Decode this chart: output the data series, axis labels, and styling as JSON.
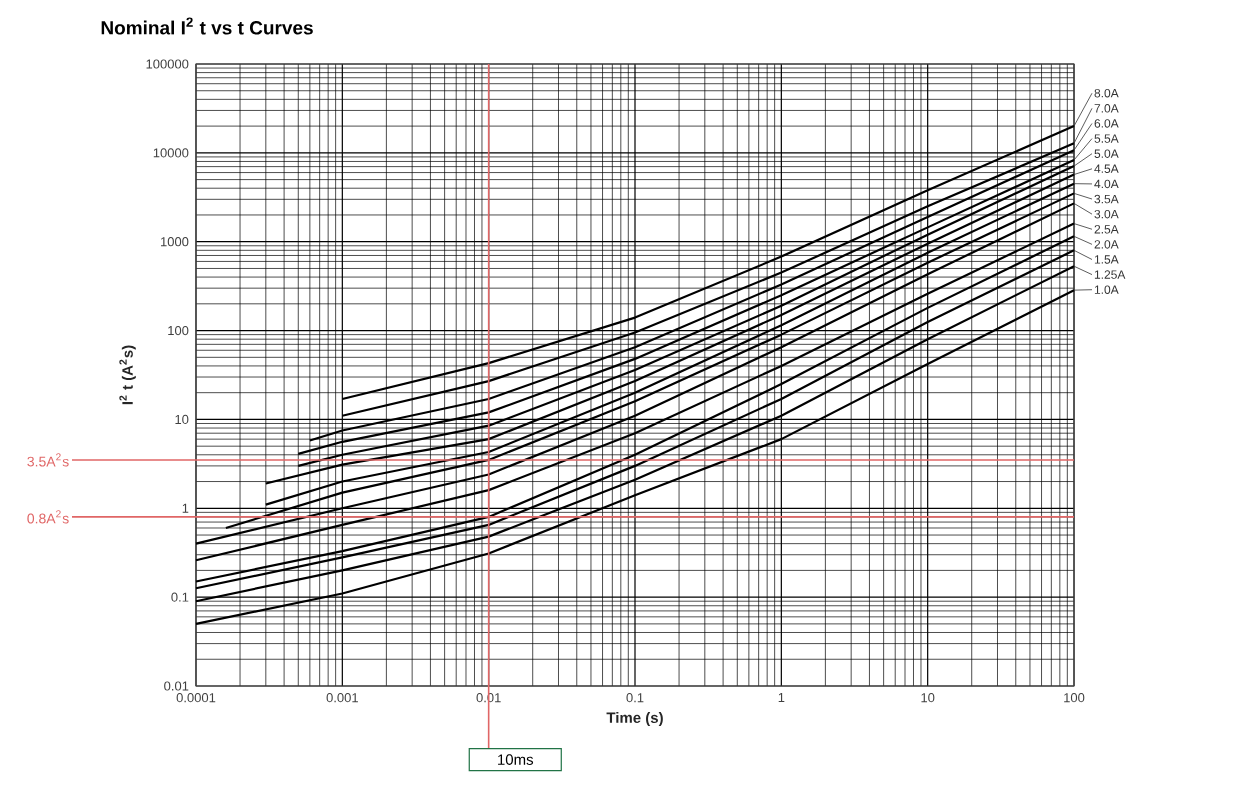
{
  "chart_data": {
    "type": "line",
    "title": "Nominal I$^{2}$ t vs t Curves",
    "xlabel": "Time (s)",
    "ylabel": "I$^{2}$ t (A$^{2}$s)",
    "log": "xy",
    "grid": true,
    "xlim": [
      0.0001,
      100
    ],
    "ylim": [
      0.01,
      100000
    ],
    "xticks": [
      0.0001,
      0.001,
      0.01,
      0.1,
      1,
      10,
      100
    ],
    "yticks": [
      0.01,
      0.1,
      1,
      10,
      100,
      1000,
      10000,
      100000
    ],
    "series": [
      {
        "name": "8.0A",
        "color": "#000000",
        "x": [
          0.001,
          0.01,
          0.1,
          1,
          10,
          100
        ],
        "values": [
          17,
          43,
          140,
          680,
          3800,
          20000
        ]
      },
      {
        "name": "7.0A",
        "color": "#000000",
        "x": [
          0.001,
          0.01,
          0.1,
          1,
          10,
          100
        ],
        "values": [
          11,
          27,
          95,
          450,
          2500,
          12800
        ]
      },
      {
        "name": "6.0A",
        "color": "#000000",
        "x": [
          0.0006,
          0.001,
          0.01,
          0.1,
          1,
          10,
          100
        ],
        "values": [
          5.8,
          7.5,
          17,
          65,
          330,
          1900,
          10700
        ]
      },
      {
        "name": "5.5A",
        "color": "#000000",
        "x": [
          0.0005,
          0.001,
          0.01,
          0.1,
          1,
          10,
          100
        ],
        "values": [
          4.1,
          5.6,
          12,
          48,
          250,
          1450,
          8300
        ]
      },
      {
        "name": "5.0A",
        "color": "#000000",
        "x": [
          0.0005,
          0.001,
          0.01,
          0.1,
          1,
          10,
          100
        ],
        "values": [
          3,
          4,
          8.5,
          36,
          190,
          1200,
          7100
        ]
      },
      {
        "name": "4.5A",
        "color": "#000000",
        "x": [
          0.0003,
          0.001,
          0.01,
          0.1,
          1,
          10,
          100
        ],
        "values": [
          1.9,
          3.1,
          6,
          27,
          150,
          950,
          5700
        ]
      },
      {
        "name": "4.0A",
        "color": "#000000",
        "x": [
          0.0003,
          0.001,
          0.01,
          0.1,
          1,
          10,
          100
        ],
        "values": [
          1.1,
          2,
          4.3,
          20,
          115,
          750,
          4500
        ]
      },
      {
        "name": "3.5A",
        "color": "#000000",
        "x": [
          0.00016,
          0.001,
          0.01,
          0.1,
          1,
          10,
          100
        ],
        "values": [
          0.6,
          1.5,
          3.5,
          16,
          90,
          580,
          3500
        ]
      },
      {
        "name": "3.0A",
        "color": "#000000",
        "x": [
          0.0001,
          0.001,
          0.01,
          0.1,
          1,
          10,
          100
        ],
        "values": [
          0.4,
          1,
          2.4,
          11,
          65,
          430,
          2700
        ]
      },
      {
        "name": "2.5A",
        "color": "#000000",
        "x": [
          0.0001,
          0.001,
          0.01,
          0.1,
          1,
          10,
          100
        ],
        "values": [
          0.26,
          0.65,
          1.6,
          7,
          40,
          260,
          1600
        ]
      },
      {
        "name": "2.0A",
        "color": "#000000",
        "x": [
          0.0001,
          0.001,
          0.01,
          0.1,
          1,
          10,
          100
        ],
        "values": [
          0.15,
          0.33,
          0.8,
          4,
          25,
          180,
          1150
        ]
      },
      {
        "name": "1.5A",
        "color": "#000000",
        "x": [
          0.0001,
          0.001,
          0.01,
          0.1,
          1,
          10,
          100
        ],
        "values": [
          0.126,
          0.28,
          0.65,
          3,
          17,
          125,
          800
        ]
      },
      {
        "name": "1.25A",
        "color": "#000000",
        "x": [
          0.0001,
          0.001,
          0.01,
          0.1,
          1,
          10,
          100
        ],
        "values": [
          0.09,
          0.2,
          0.48,
          2.1,
          11,
          80,
          530
        ]
      },
      {
        "name": "1.0A",
        "color": "#000000",
        "x": [
          0.0001,
          0.001,
          0.01,
          0.1,
          1,
          10,
          100
        ],
        "values": [
          0.05,
          0.11,
          0.31,
          1.4,
          6,
          42,
          285
        ]
      }
    ],
    "ref_lines": [
      {
        "axis": "x",
        "value": 0.01,
        "label": "10ms",
        "color": "#e06666"
      },
      {
        "axis": "y",
        "value": 3.5,
        "label": "3.5A$^{2}$s",
        "color": "#e06666"
      },
      {
        "axis": "y",
        "value": 0.8,
        "label": "0.8A$^{2}$s",
        "color": "#e06666"
      }
    ]
  }
}
